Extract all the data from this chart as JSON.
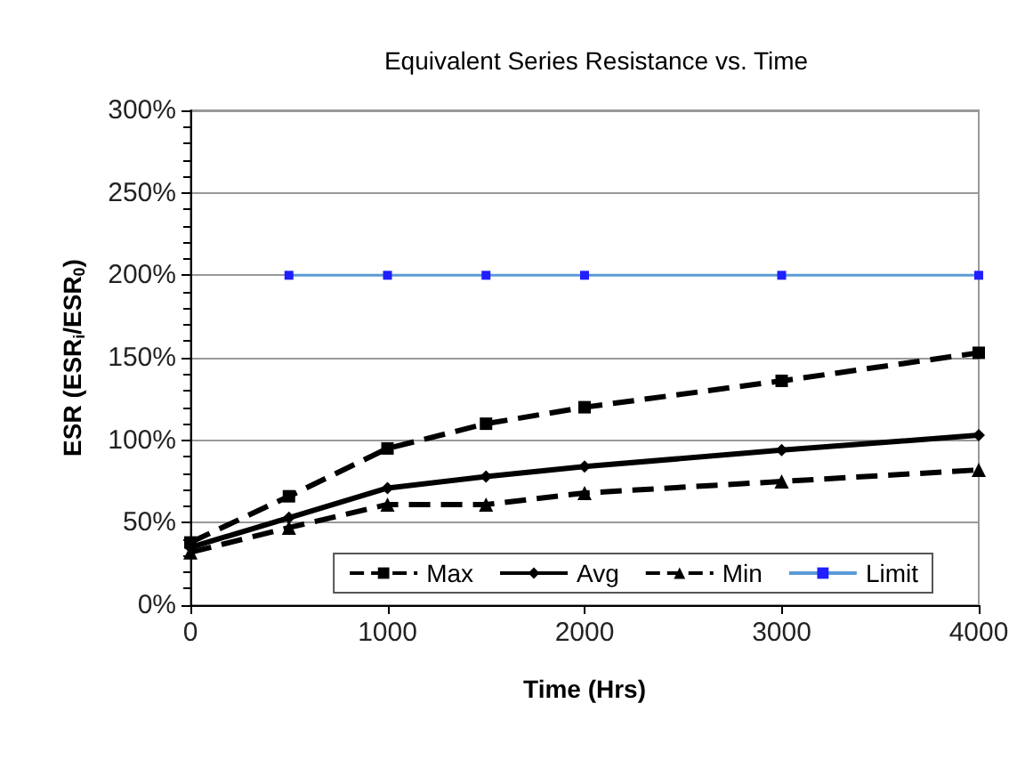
{
  "chart_data": {
    "type": "line",
    "title": "Equivalent Series Resistance vs. Time",
    "xlabel": "Time (Hrs)",
    "ylabel": "ESR (ESR$_{i}$/ESR$_{0}$)",
    "xlim": [
      0,
      4000
    ],
    "xticks": [
      0,
      1000,
      2000,
      3000,
      4000
    ],
    "ylim": [
      0,
      300
    ],
    "yticks": [
      {
        "value": 0,
        "label": "0%"
      },
      {
        "value": 50,
        "label": "50%"
      },
      {
        "value": 100,
        "label": "100%"
      },
      {
        "value": 150,
        "label": "150%"
      },
      {
        "value": 200,
        "label": "200%"
      },
      {
        "value": 250,
        "label": "250%"
      },
      {
        "value": 300,
        "label": "300%"
      }
    ],
    "grid": "y",
    "legend": "bottom right",
    "series": [
      {
        "name": "Max",
        "color": "#000000",
        "marker": "square",
        "line_style": "dashed",
        "x": [
          0,
          500,
          1000,
          1500,
          2000,
          3000,
          4000
        ],
        "values": [
          38,
          66,
          95,
          110,
          120,
          136,
          153
        ]
      },
      {
        "name": "Avg",
        "color": "#000000",
        "marker": "diamond",
        "line_style": "solid",
        "x": [
          0,
          500,
          1000,
          1500,
          2000,
          3000,
          4000
        ],
        "values": [
          35,
          53,
          71,
          78,
          84,
          94,
          103
        ]
      },
      {
        "name": "Min",
        "color": "#000000",
        "marker": "triangle",
        "line_style": "dashed",
        "x": [
          0,
          500,
          1000,
          1500,
          2000,
          3000,
          4000
        ],
        "values": [
          32,
          47,
          61,
          61,
          68,
          75,
          82
        ]
      },
      {
        "name": "Limit",
        "color": "#5b9bd5",
        "marker": "square",
        "line_style": "solid",
        "x": [
          500,
          1000,
          1500,
          2000,
          3000,
          4000
        ],
        "values": [
          200,
          200,
          200,
          200,
          200,
          200
        ]
      }
    ]
  }
}
